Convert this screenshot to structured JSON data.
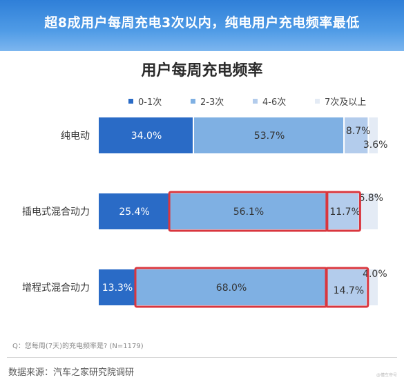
{
  "banner": {
    "title": "超8成用户每周充电3次以内，纯电用户充电频率最低"
  },
  "chart_data": {
    "type": "bar",
    "orientation": "horizontal",
    "stacked": true,
    "normalized_to": 100,
    "title": "用户每周充电频率",
    "categories": [
      "纯电动",
      "插电式混合动力",
      "增程式混合动力"
    ],
    "series": [
      {
        "name": "0-1次",
        "color": "#2a6bc6",
        "values": [
          34.0,
          25.4,
          13.3
        ],
        "labels": [
          "34.0%",
          "25.4%",
          "13.3%"
        ]
      },
      {
        "name": "2-3次",
        "color": "#7fb0e3",
        "values": [
          53.7,
          56.1,
          68.0
        ],
        "labels": [
          "53.7%",
          "56.1%",
          "68.0%"
        ]
      },
      {
        "name": "4-6次",
        "color": "#b3ccec",
        "values": [
          8.7,
          11.7,
          14.7
        ],
        "labels": [
          "8.7%",
          "11.7%",
          "14.7%"
        ]
      },
      {
        "name": "7次及以上",
        "color": "#e4ebf5",
        "values": [
          3.6,
          6.8,
          4.0
        ],
        "labels": [
          "3.6%",
          "6.8%",
          "4.0%"
        ]
      }
    ],
    "legend_position": "top",
    "grid": false,
    "highlighted": [
      {
        "category": "插电式混合动力",
        "series": [
          "2-3次",
          "4-6次"
        ]
      },
      {
        "category": "增程式混合动力",
        "series": [
          "2-3次",
          "4-6次"
        ]
      }
    ],
    "highlight_color": "#d9363e"
  },
  "footer": {
    "question": "Q：您每周(7天)的充电频率是?  (N=1179)",
    "source": "数据来源：汽车之家研究院调研",
    "watermark": "@懂车帝号"
  }
}
